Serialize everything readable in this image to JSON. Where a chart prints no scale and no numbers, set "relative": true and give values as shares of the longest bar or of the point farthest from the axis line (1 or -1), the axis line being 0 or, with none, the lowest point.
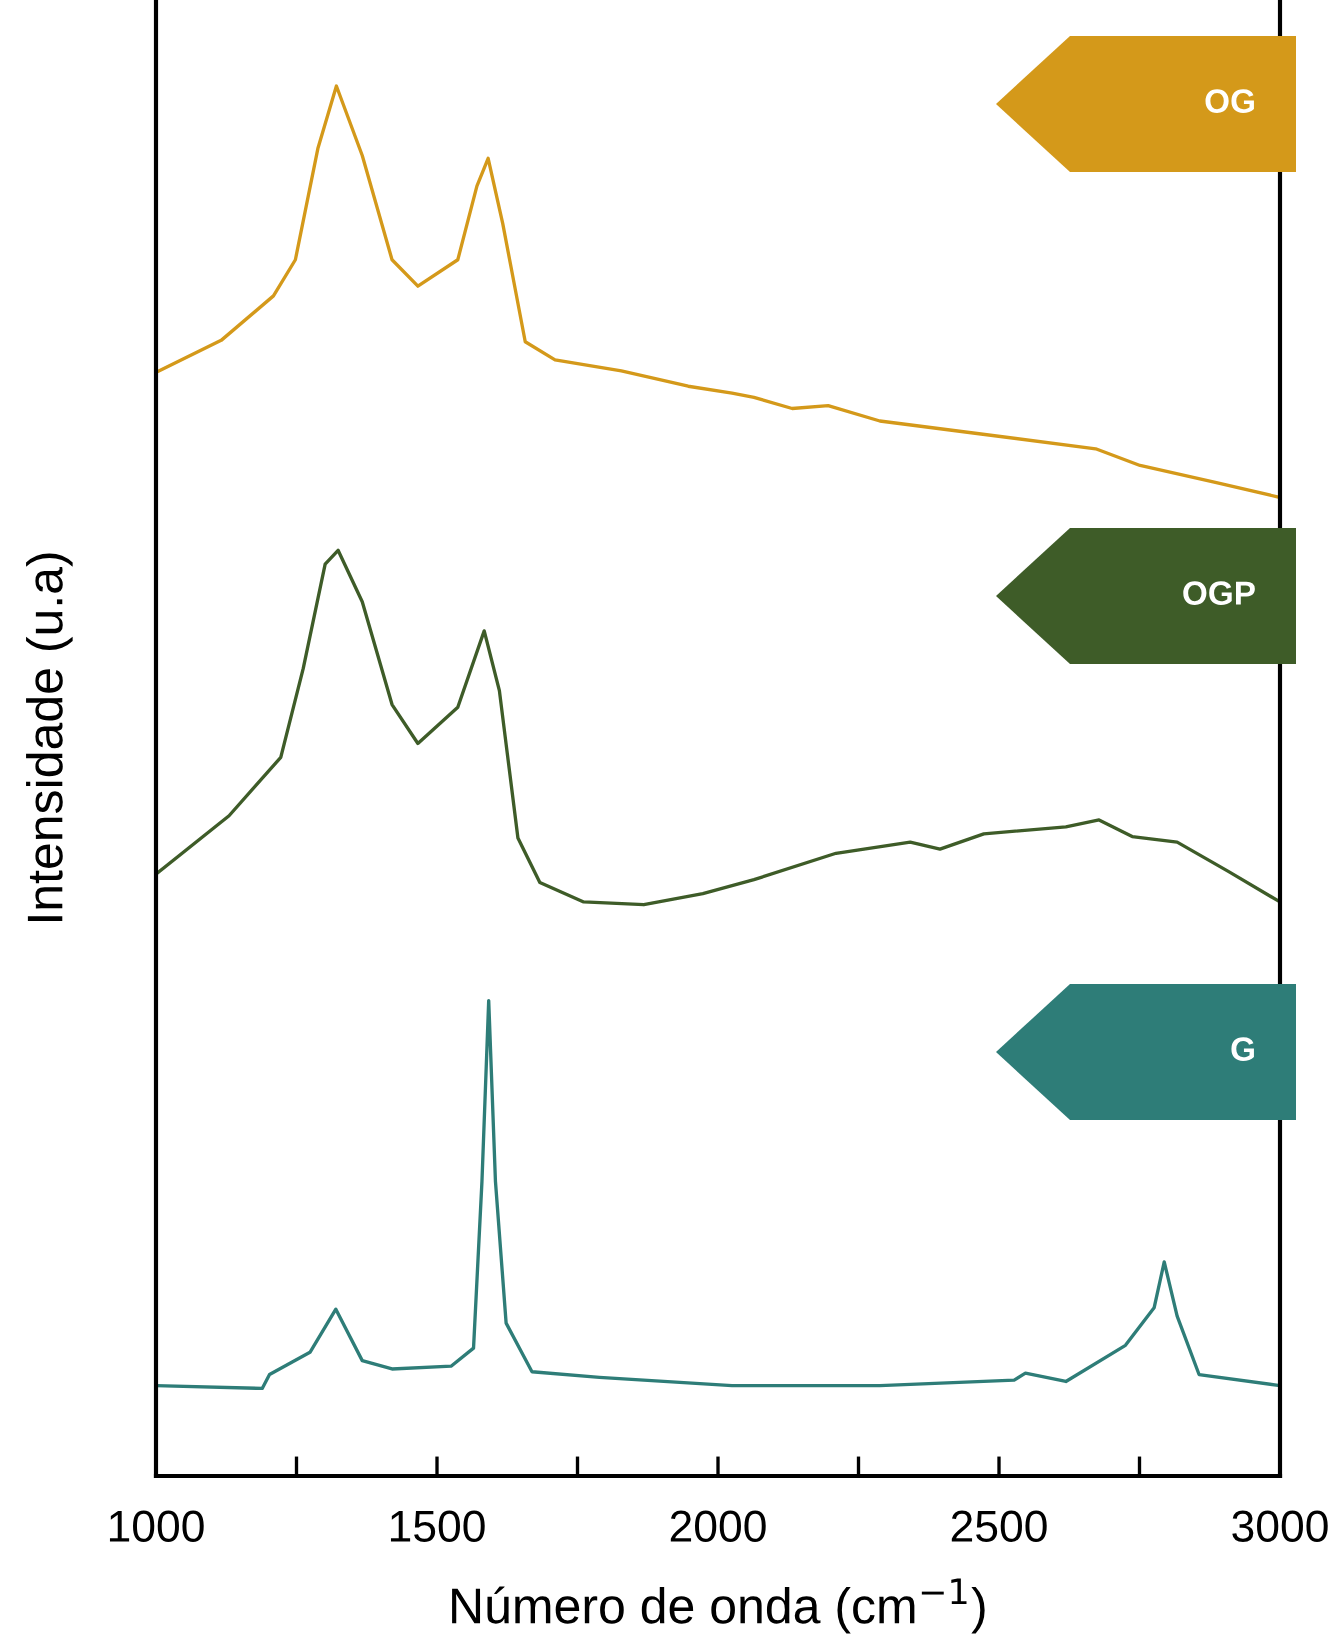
{
  "chart_data": {
    "type": "line",
    "relative": true,
    "xlabel": "Número de onda (cm$^{−1}$)",
    "ylabel": "Intensidade (u.a)",
    "xlim": [
      1000,
      3000
    ],
    "xticks": [
      1000,
      {
        "value": 1250,
        "label": null
      },
      1500,
      {
        "value": 1750,
        "label": null
      },
      2000,
      {
        "value": 2250,
        "label": null
      },
      2500,
      {
        "value": 2750,
        "label": null
      },
      3000
    ],
    "tick_labels": "x",
    "grid": false,
    "annotations": [
      "OG",
      "OGP",
      "G"
    ],
    "marker": "none",
    "line_style": "solid",
    "series": [
      {
        "color": "#d4991a",
        "x": [
          1000,
          1116,
          1209,
          1248,
          1288,
          1321,
          1367,
          1420,
          1466,
          1537,
          1571,
          1591,
          1617,
          1657,
          1710,
          1828,
          1947,
          2025,
          2064,
          2132,
          2196,
          2288,
          2461,
          2672,
          2751,
          2883,
          3000
        ],
        "values": [
          0.794,
          0.817,
          0.849,
          0.875,
          0.955,
          1.0,
          0.95,
          0.875,
          0.856,
          0.875,
          0.928,
          0.948,
          0.901,
          0.816,
          0.803,
          0.795,
          0.784,
          0.779,
          0.776,
          0.768,
          0.77,
          0.759,
          0.75,
          0.739,
          0.727,
          0.715,
          0.704
        ]
      },
      {
        "color": "#3e5c28",
        "x": [
          1000,
          1130,
          1222,
          1262,
          1301,
          1324,
          1367,
          1420,
          1466,
          1537,
          1584,
          1611,
          1644,
          1683,
          1761,
          1868,
          1973,
          2064,
          2210,
          2342,
          2395,
          2473,
          2619,
          2678,
          2737,
          2817,
          2908,
          3000
        ],
        "values": [
          0.433,
          0.475,
          0.517,
          0.581,
          0.656,
          0.666,
          0.629,
          0.555,
          0.527,
          0.553,
          0.608,
          0.565,
          0.459,
          0.427,
          0.413,
          0.411,
          0.419,
          0.429,
          0.448,
          0.456,
          0.451,
          0.462,
          0.467,
          0.472,
          0.46,
          0.456,
          0.435,
          0.413
        ]
      },
      {
        "color": "#2e7d78",
        "x": [
          1000,
          1189,
          1202,
          1274,
          1320,
          1367,
          1420,
          1525,
          1565,
          1580,
          1592,
          1604,
          1623,
          1669,
          1789,
          2025,
          2288,
          2527,
          2547,
          2619,
          2725,
          2776,
          2794,
          2817,
          2856,
          3000
        ],
        "values": [
          0.065,
          0.063,
          0.073,
          0.089,
          0.12,
          0.083,
          0.077,
          0.079,
          0.092,
          0.212,
          0.342,
          0.212,
          0.11,
          0.075,
          0.071,
          0.065,
          0.065,
          0.069,
          0.074,
          0.068,
          0.094,
          0.121,
          0.154,
          0.115,
          0.073,
          0.065
        ]
      }
    ]
  }
}
